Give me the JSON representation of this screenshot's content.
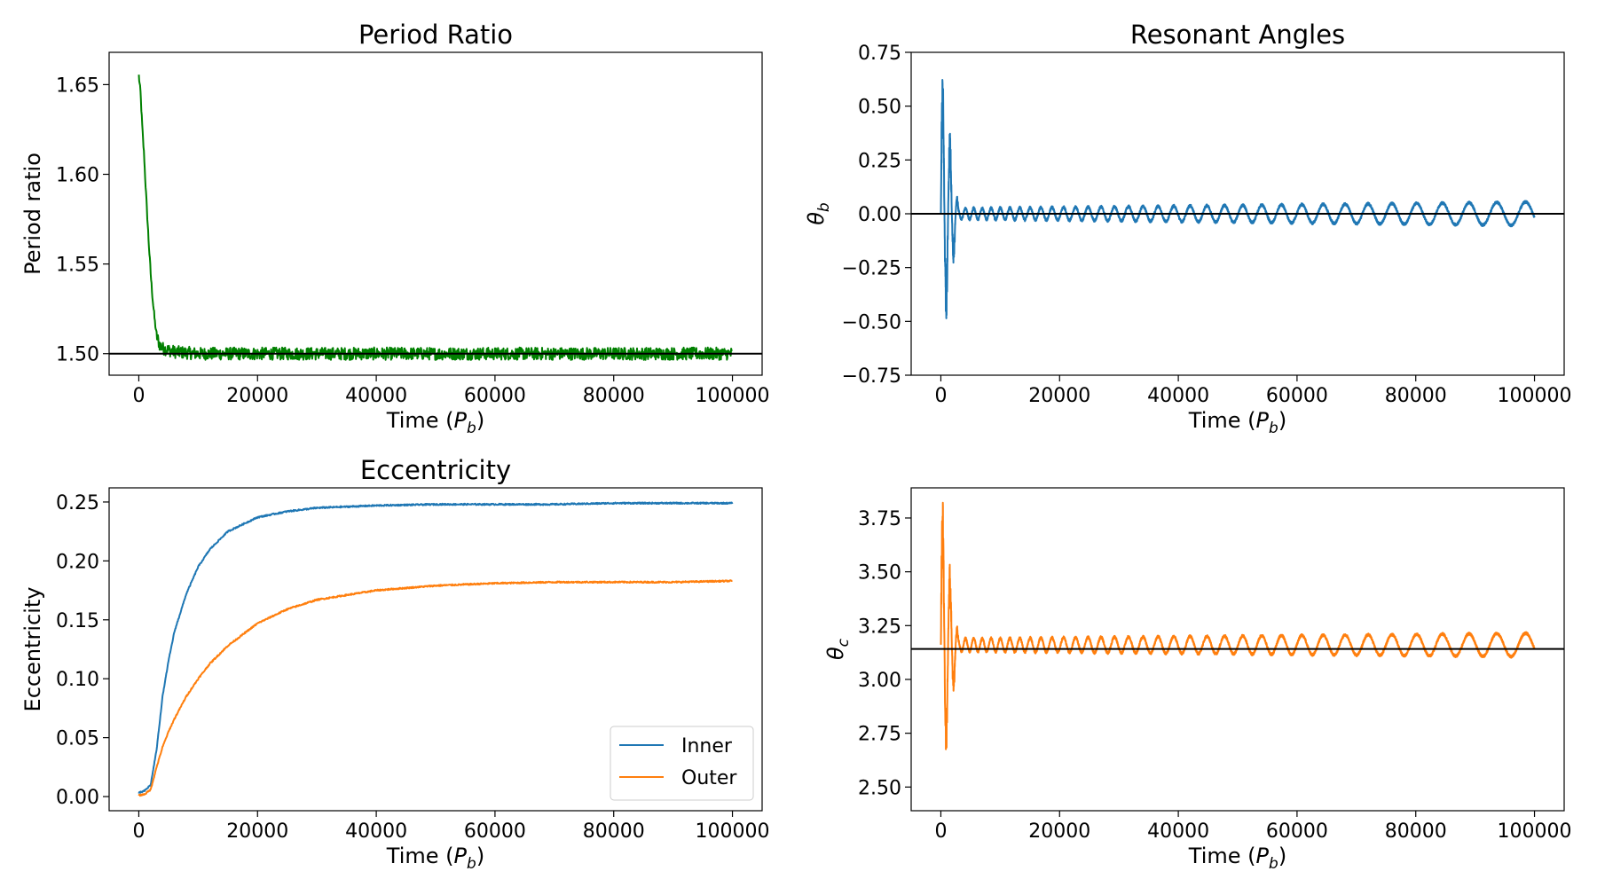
{
  "chart_data": [
    {
      "id": "period",
      "type": "line",
      "title": "Period Ratio",
      "xlabel": "Time (P_b)",
      "ylabel": "Period ratio",
      "xlim": [
        -5000,
        105000
      ],
      "ylim": [
        1.488,
        1.668
      ],
      "xticks": [
        0,
        20000,
        40000,
        60000,
        80000,
        100000
      ],
      "yticks": [
        1.5,
        1.55,
        1.6,
        1.65
      ],
      "ytick_labels": [
        "1.50",
        "1.55",
        "1.60",
        "1.65"
      ],
      "hline": 1.5,
      "grid": false,
      "series": [
        {
          "color": "#008000",
          "x": [
            0,
            300,
            600,
            900,
            1200,
            1500,
            1800,
            2100,
            2400,
            2700,
            3000,
            3500,
            4000,
            5000,
            6000,
            8000,
            10000,
            15000,
            20000,
            30000,
            40000,
            50000,
            60000,
            70000,
            80000,
            90000,
            100000
          ],
          "y": [
            1.655,
            1.645,
            1.625,
            1.61,
            1.59,
            1.572,
            1.555,
            1.54,
            1.528,
            1.518,
            1.51,
            1.505,
            1.503,
            1.502,
            1.501,
            1.5005,
            1.5,
            1.5,
            1.5,
            1.5,
            1.5,
            1.5,
            1.5,
            1.5,
            1.5,
            1.5,
            1.5
          ],
          "noise_amplitude": 0.0035
        }
      ]
    },
    {
      "id": "theta_b",
      "type": "line",
      "title": "Resonant Angles",
      "xlabel": "Time (P_b)",
      "ylabel": "θ_b",
      "xlim": [
        -5000,
        105000
      ],
      "ylim": [
        -0.75,
        0.75
      ],
      "xticks": [
        0,
        20000,
        40000,
        60000,
        80000,
        100000
      ],
      "yticks": [
        -0.75,
        -0.5,
        -0.25,
        0.0,
        0.25,
        0.5,
        0.75
      ],
      "ytick_labels": [
        "−0.75",
        "−0.50",
        "−0.25",
        "0.00",
        "0.25",
        "0.50",
        "0.75"
      ],
      "hline": 0.0,
      "grid": false,
      "series": [
        {
          "color": "#1f77b4",
          "center": 0.0,
          "initial_amplitude": 0.75,
          "settled_amplitude_start": 0.025,
          "settled_amplitude_end": 0.055,
          "initial_period_start": 1200,
          "period_end": 5000
        }
      ]
    },
    {
      "id": "ecc",
      "type": "line",
      "title": "Eccentricity",
      "xlabel": "Time (P_b)",
      "ylabel": "Eccentricity",
      "xlim": [
        -5000,
        105000
      ],
      "ylim": [
        -0.012,
        0.262
      ],
      "xticks": [
        0,
        20000,
        40000,
        60000,
        80000,
        100000
      ],
      "yticks": [
        0.0,
        0.05,
        0.1,
        0.15,
        0.2,
        0.25
      ],
      "ytick_labels": [
        "0.00",
        "0.05",
        "0.10",
        "0.15",
        "0.20",
        "0.25"
      ],
      "legend": "lower right",
      "grid": false,
      "series": [
        {
          "name": "Inner",
          "color": "#1f77b4",
          "x": [
            0,
            1000,
            2000,
            3000,
            4000,
            5000,
            6000,
            8000,
            10000,
            12000,
            15000,
            20000,
            25000,
            30000,
            40000,
            50000,
            60000,
            70000,
            80000,
            90000,
            100000
          ],
          "y": [
            0.003,
            0.005,
            0.01,
            0.04,
            0.085,
            0.115,
            0.14,
            0.172,
            0.195,
            0.21,
            0.225,
            0.237,
            0.242,
            0.245,
            0.247,
            0.248,
            0.248,
            0.248,
            0.249,
            0.249,
            0.249
          ]
        },
        {
          "name": "Outer",
          "color": "#ff7f0e",
          "x": [
            0,
            1000,
            2000,
            3000,
            4000,
            5000,
            6000,
            8000,
            10000,
            12000,
            15000,
            20000,
            25000,
            30000,
            40000,
            50000,
            60000,
            70000,
            80000,
            90000,
            100000
          ],
          "y": [
            0.001,
            0.002,
            0.006,
            0.025,
            0.042,
            0.055,
            0.066,
            0.085,
            0.1,
            0.113,
            0.128,
            0.147,
            0.159,
            0.167,
            0.175,
            0.179,
            0.181,
            0.182,
            0.182,
            0.182,
            0.183
          ]
        }
      ]
    },
    {
      "id": "theta_c",
      "type": "line",
      "title": "",
      "xlabel": "Time (P_b)",
      "ylabel": "θ_c",
      "xlim": [
        -5000,
        105000
      ],
      "ylim": [
        2.39,
        3.89
      ],
      "xticks": [
        0,
        20000,
        40000,
        60000,
        80000,
        100000
      ],
      "yticks": [
        2.5,
        2.75,
        3.0,
        3.25,
        3.5,
        3.75
      ],
      "ytick_labels": [
        "2.50",
        "2.75",
        "3.00",
        "3.25",
        "3.50",
        "3.75"
      ],
      "hline": 3.1416,
      "grid": false,
      "series": [
        {
          "color": "#ff7f0e",
          "center": 3.16,
          "initial_amplitude": 0.75,
          "settled_amplitude_start": 0.03,
          "settled_amplitude_end": 0.055,
          "initial_period_start": 1200,
          "period_end": 5000
        }
      ]
    }
  ]
}
